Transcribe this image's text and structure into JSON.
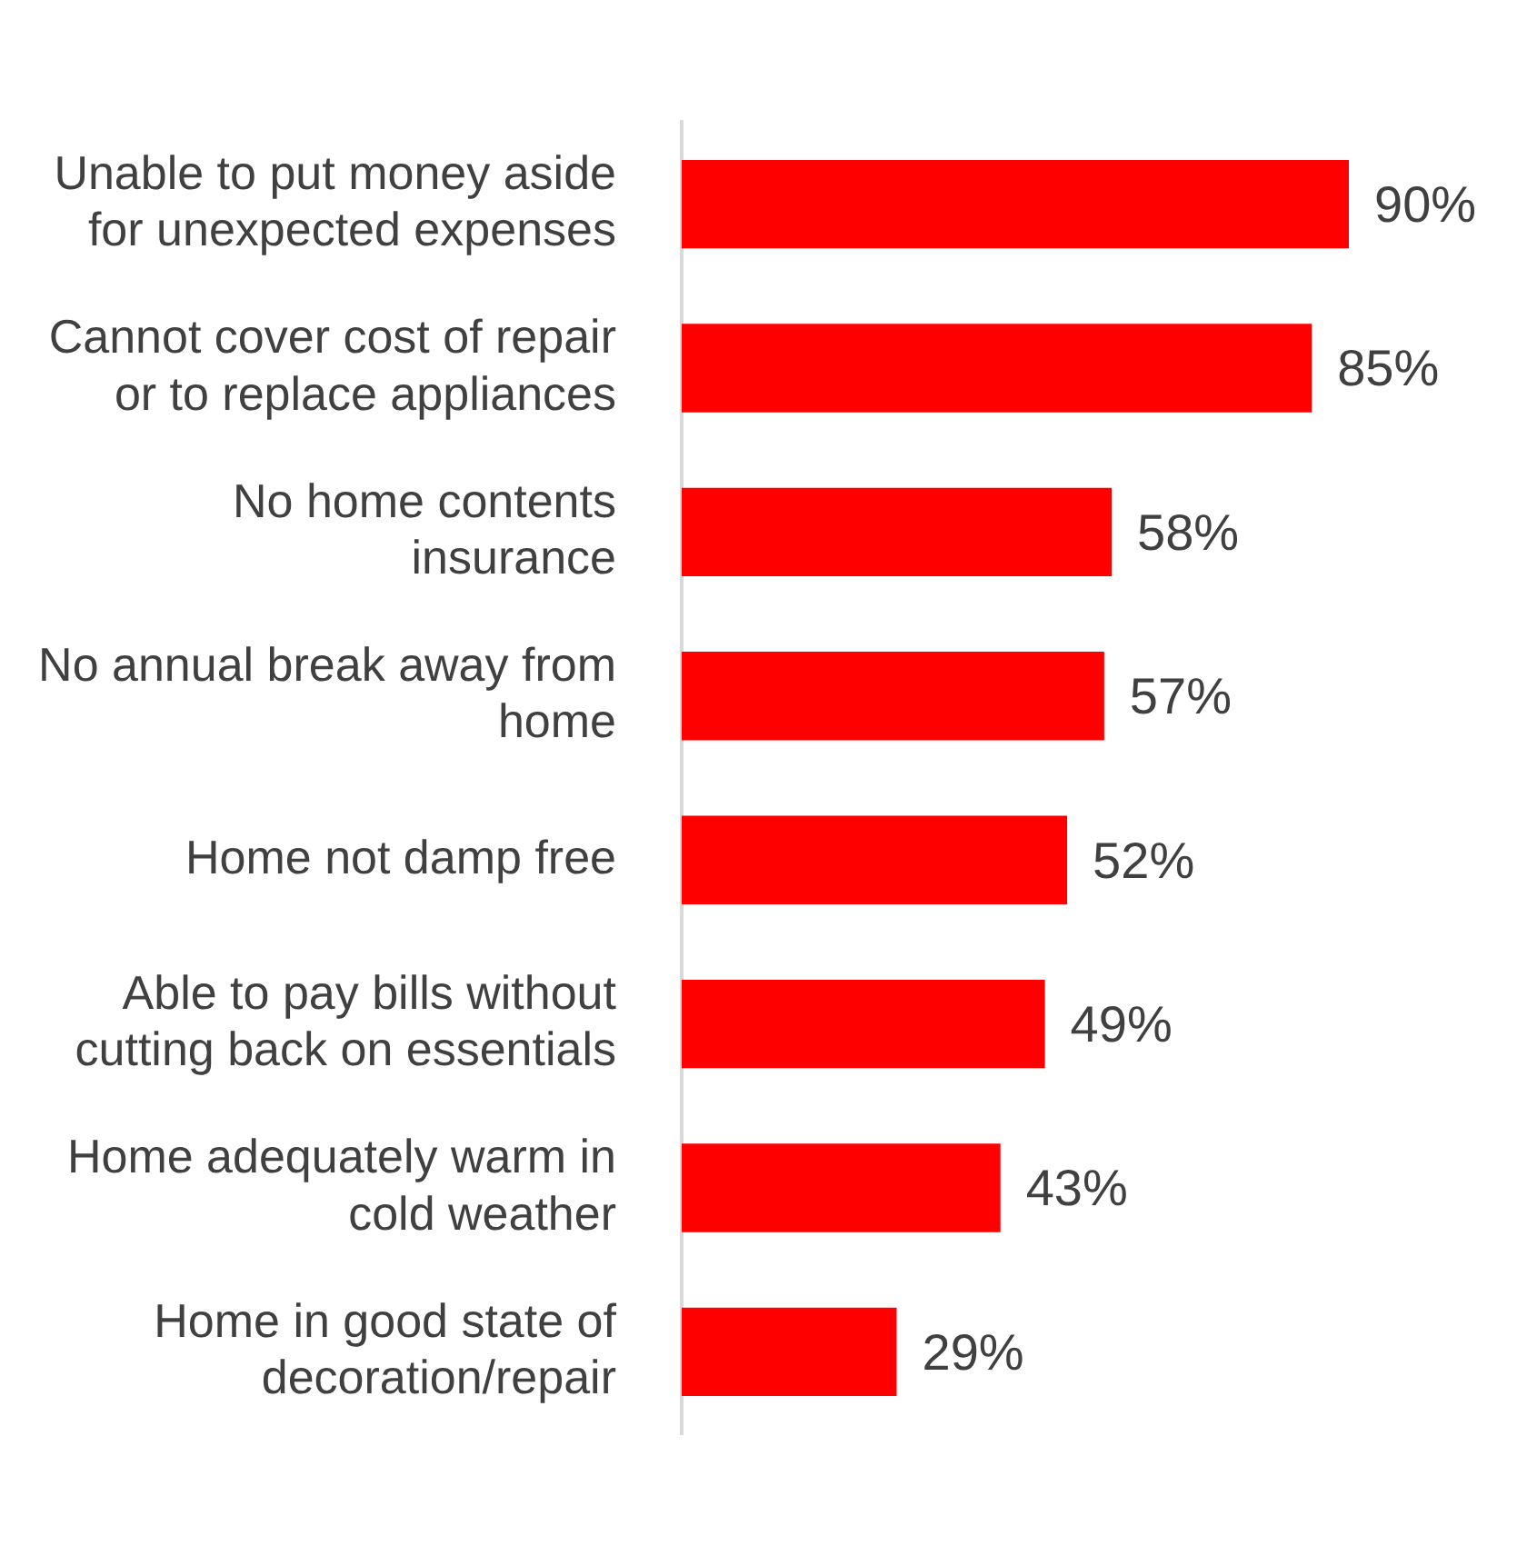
{
  "chart_data": {
    "type": "bar",
    "orientation": "horizontal",
    "categories": [
      "Unable to put money aside for unexpected expenses",
      "Cannot cover cost of repair or to replace appliances",
      "No home contents insurance",
      "No annual break away from home",
      "Home not damp free",
      "Able to pay bills without cutting back on essentials",
      "Home adequately warm in cold weather",
      "Home in good state of decoration/repair"
    ],
    "values": [
      90,
      85,
      58,
      57,
      52,
      49,
      43,
      29
    ],
    "value_labels": [
      "90%",
      "85%",
      "58%",
      "57%",
      "52%",
      "49%",
      "43%",
      "29%"
    ],
    "color": "#ff0000",
    "grid": false,
    "legend": false
  }
}
